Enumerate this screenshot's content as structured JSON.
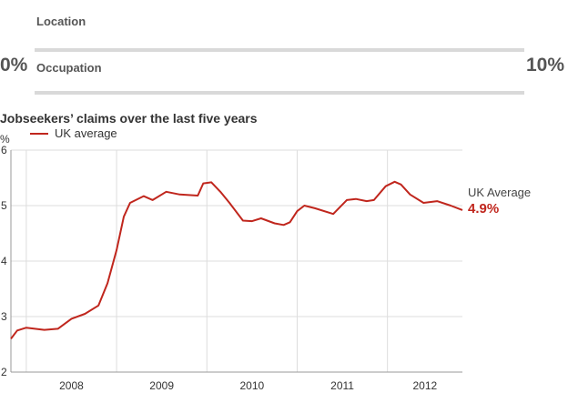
{
  "filters": {
    "location_label": "Location",
    "occupation_label": "Occupation",
    "range_min": "0%",
    "range_max": "10%"
  },
  "colors": {
    "series": "#c0261d",
    "grid": "#dddddd",
    "axis": "#999999",
    "track": "#d9d9d9"
  },
  "chart_data": {
    "type": "line",
    "title": "Jobseekers’ claims over the last five years",
    "ylabel": "%",
    "xlabel": "",
    "ylim": [
      2,
      6
    ],
    "yticks": [
      2,
      3,
      4,
      5,
      6
    ],
    "xlim": [
      2007.83,
      2012.83
    ],
    "xticks": [
      2008,
      2009,
      2010,
      2011,
      2012
    ],
    "grid": true,
    "legend_position": "top-left",
    "series": [
      {
        "name": "UK average",
        "x": [
          2007.83,
          2007.9,
          2008.0,
          2008.2,
          2008.35,
          2008.5,
          2008.65,
          2008.8,
          2008.9,
          2009.0,
          2009.08,
          2009.15,
          2009.3,
          2009.4,
          2009.55,
          2009.7,
          2009.9,
          2009.96,
          2010.05,
          2010.15,
          2010.25,
          2010.4,
          2010.5,
          2010.6,
          2010.75,
          2010.85,
          2010.92,
          2011.0,
          2011.08,
          2011.2,
          2011.4,
          2011.55,
          2011.65,
          2011.77,
          2011.85,
          2011.98,
          2012.08,
          2012.15,
          2012.25,
          2012.4,
          2012.55,
          2012.7,
          2012.83
        ],
        "values": [
          2.6,
          2.75,
          2.8,
          2.76,
          2.78,
          2.96,
          3.05,
          3.2,
          3.6,
          4.2,
          4.8,
          5.05,
          5.17,
          5.1,
          5.25,
          5.2,
          5.18,
          5.4,
          5.42,
          5.25,
          5.05,
          4.73,
          4.72,
          4.77,
          4.68,
          4.65,
          4.7,
          4.9,
          5.0,
          4.95,
          4.85,
          5.1,
          5.12,
          5.08,
          5.1,
          5.35,
          5.43,
          5.38,
          5.2,
          5.05,
          5.08,
          5.0,
          4.92
        ]
      }
    ],
    "end_label": "UK Average",
    "end_value": "4.9%"
  }
}
